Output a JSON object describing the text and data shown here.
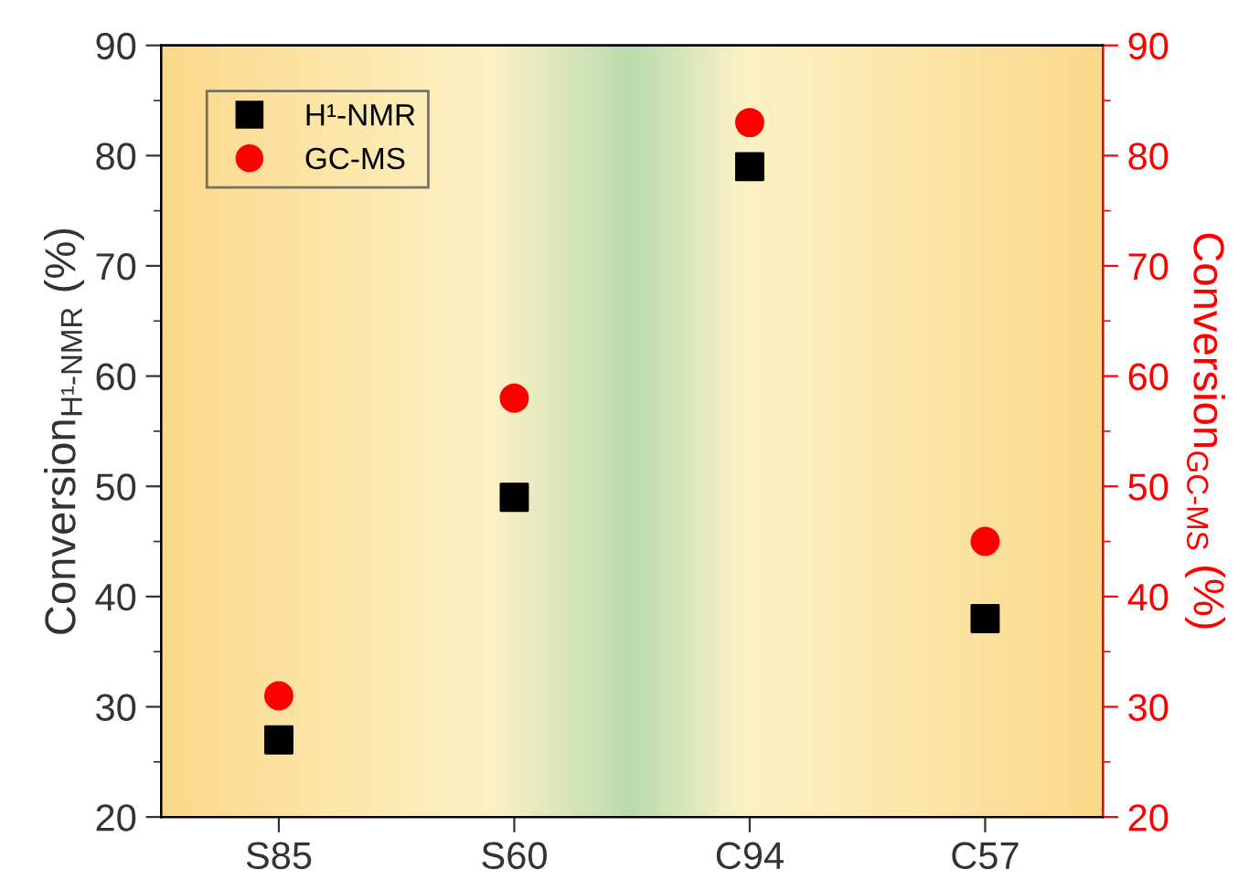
{
  "chart_data": {
    "type": "scatter",
    "categories": [
      "S85",
      "S60",
      "C94",
      "C57"
    ],
    "ylabel": "Conversion$_{H¹-NMR}$ (%)",
    "y2label": "Conversion$_{GC-MS}$ (%)",
    "ylim": [
      20,
      90
    ],
    "yticks": [
      20,
      30,
      40,
      50,
      60,
      70,
      80,
      90
    ],
    "y2lim": [
      20,
      90
    ],
    "y2ticks": [
      20,
      30,
      40,
      50,
      60,
      70,
      80,
      90
    ],
    "series": [
      {
        "name": "H¹-NMR",
        "color": "#000000",
        "marker": "square",
        "values": [
          27,
          49,
          79,
          38
        ]
      },
      {
        "name": "GC-MS",
        "color": "#ff0000",
        "marker": "circle",
        "axis": "y2",
        "values": [
          31,
          58,
          83,
          45
        ]
      }
    ],
    "legend": "top left",
    "grid": false
  }
}
